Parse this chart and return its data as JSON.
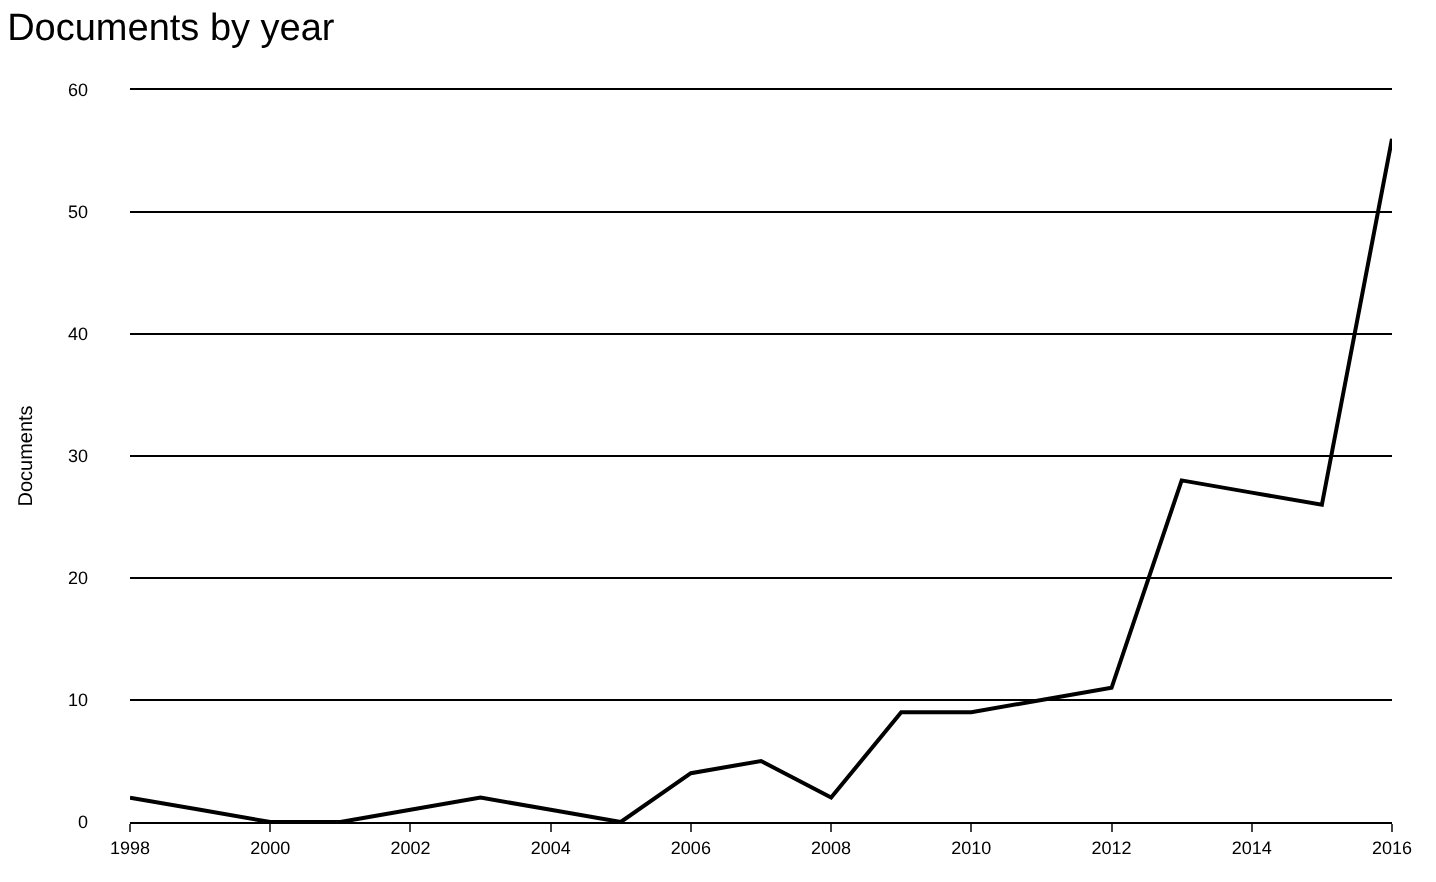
{
  "chart_data": {
    "type": "line",
    "title": "Documents by year",
    "ylabel": "Documents",
    "x": [
      1998,
      1999,
      2000,
      2001,
      2002,
      2003,
      2004,
      2005,
      2006,
      2007,
      2008,
      2009,
      2010,
      2011,
      2012,
      2013,
      2014,
      2015,
      2016
    ],
    "series": [
      {
        "color": "#000000",
        "values": [
          2,
          1,
          0,
          0,
          1,
          2,
          1,
          0,
          4,
          5,
          2,
          9,
          9,
          10,
          11,
          28,
          27,
          26,
          56
        ]
      }
    ],
    "xlim": [
      1998,
      2016
    ],
    "xticks": [
      1998,
      2000,
      2002,
      2004,
      2006,
      2008,
      2010,
      2012,
      2014,
      2016
    ],
    "ylim": [
      0,
      60
    ],
    "yticks": [
      0,
      10,
      20,
      30,
      40,
      50,
      60
    ],
    "grid": "y",
    "legend": false,
    "marker": "none",
    "line_style": "solid"
  }
}
